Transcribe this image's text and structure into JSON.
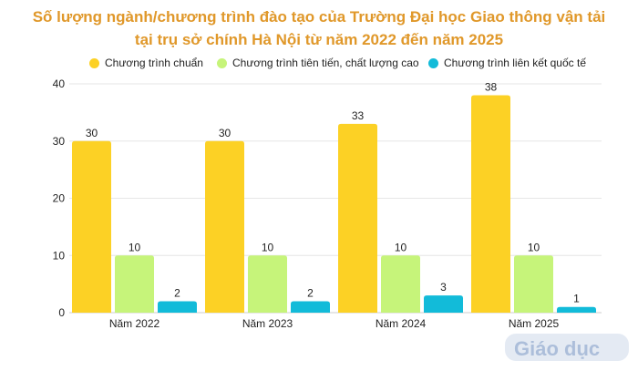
{
  "title_line1": "Số lượng ngành/chương trình đào tạo của Trường Đại học Giao thông vận tải",
  "title_line2": "tại trụ sở chính Hà Nội từ năm 2022 đến năm 2025",
  "logo_text": "Giáo dục Việt Nam",
  "chart_data": {
    "type": "bar",
    "title": "Số lượng ngành/chương trình đào tạo của Trường Đại học Giao thông vận tải tại trụ sở chính Hà Nội từ năm 2022 đến năm 2025",
    "categories": [
      "Năm 2022",
      "Năm 2023",
      "Năm 2024",
      "Năm 2025"
    ],
    "series": [
      {
        "name": "Chương trình chuẩn",
        "values": [
          30,
          30,
          33,
          38
        ],
        "color": "#fcd125"
      },
      {
        "name": "Chương trình tiên tiến, chất lượng cao",
        "values": [
          10,
          10,
          10,
          10
        ],
        "color": "#c6f47a"
      },
      {
        "name": "Chương trình liên kết quốc tế",
        "values": [
          2,
          2,
          3,
          1
        ],
        "color": "#12bbd9"
      }
    ],
    "yticks": [
      "0",
      "10",
      "20",
      "30",
      "40"
    ],
    "ylim": [
      0,
      40
    ],
    "grid": true,
    "legend_position": "top"
  }
}
